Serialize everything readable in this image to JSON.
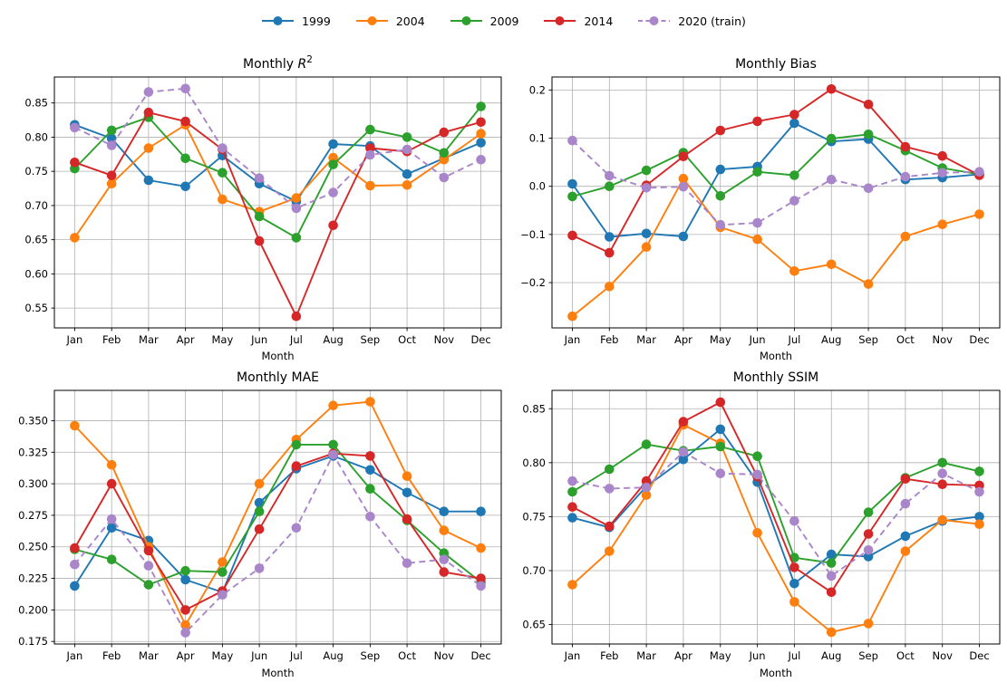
{
  "legend": {
    "items": [
      {
        "label": "1999",
        "color": "#1f77b4",
        "dashed": false
      },
      {
        "label": "2004",
        "color": "#ff7f0e",
        "dashed": false
      },
      {
        "label": "2009",
        "color": "#2ca02c",
        "dashed": false
      },
      {
        "label": "2014",
        "color": "#d62728",
        "dashed": false
      },
      {
        "label": "2020 (train)",
        "color": "#a985ca",
        "dashed": true
      }
    ]
  },
  "chart_data": [
    {
      "type": "line",
      "title": "Monthly R²",
      "xlabel": "Month",
      "categories": [
        "Jan",
        "Feb",
        "Mar",
        "Apr",
        "May",
        "Jun",
        "Jul",
        "Aug",
        "Sep",
        "Oct",
        "Nov",
        "Dec"
      ],
      "ylim": [
        0.521,
        0.888
      ],
      "yticks": [
        0.55,
        0.6,
        0.65,
        0.7,
        0.75,
        0.8,
        0.85
      ],
      "ytick_decimals": 2,
      "grid": true,
      "legend_position": "figure-top",
      "series": [
        {
          "name": "1999",
          "color": "#1f77b4",
          "dashed": false,
          "values": [
            0.818,
            0.798,
            0.737,
            0.728,
            0.773,
            0.732,
            0.706,
            0.79,
            0.787,
            0.746,
            0.769,
            0.792
          ]
        },
        {
          "name": "2004",
          "color": "#ff7f0e",
          "dashed": false,
          "values": [
            0.653,
            0.732,
            0.784,
            0.818,
            0.709,
            0.691,
            0.711,
            0.77,
            0.729,
            0.73,
            0.767,
            0.805
          ]
        },
        {
          "name": "2009",
          "color": "#2ca02c",
          "dashed": false,
          "values": [
            0.754,
            0.81,
            0.829,
            0.769,
            0.748,
            0.684,
            0.653,
            0.76,
            0.811,
            0.8,
            0.777,
            0.845
          ]
        },
        {
          "name": "2014",
          "color": "#d62728",
          "dashed": false,
          "values": [
            0.763,
            0.744,
            0.836,
            0.823,
            0.782,
            0.648,
            0.538,
            0.671,
            0.784,
            0.779,
            0.807,
            0.822
          ]
        },
        {
          "name": "2020 (train)",
          "color": "#a985ca",
          "dashed": true,
          "values": [
            0.814,
            0.788,
            0.866,
            0.871,
            0.784,
            0.74,
            0.696,
            0.719,
            0.774,
            0.782,
            0.741,
            0.767
          ]
        }
      ]
    },
    {
      "type": "line",
      "title": "Monthly Bias",
      "xlabel": "Month",
      "categories": [
        "Jan",
        "Feb",
        "Mar",
        "Apr",
        "May",
        "Jun",
        "Jul",
        "Aug",
        "Sep",
        "Oct",
        "Nov",
        "Dec"
      ],
      "ylim": [
        -0.294,
        0.227
      ],
      "yticks": [
        -0.2,
        -0.1,
        0.0,
        0.1,
        0.2
      ],
      "ytick_decimals": 1,
      "grid": true,
      "series": [
        {
          "name": "1999",
          "color": "#1f77b4",
          "dashed": false,
          "values": [
            0.005,
            -0.105,
            -0.098,
            -0.104,
            0.035,
            0.041,
            0.131,
            0.093,
            0.098,
            0.014,
            0.018,
            0.025
          ]
        },
        {
          "name": "2004",
          "color": "#ff7f0e",
          "dashed": false,
          "values": [
            -0.27,
            -0.208,
            -0.126,
            0.016,
            -0.085,
            -0.11,
            -0.176,
            -0.162,
            -0.203,
            -0.104,
            -0.079,
            -0.058
          ]
        },
        {
          "name": "2009",
          "color": "#2ca02c",
          "dashed": false,
          "values": [
            -0.021,
            0.0,
            0.033,
            0.07,
            -0.02,
            0.03,
            0.023,
            0.099,
            0.108,
            0.074,
            0.038,
            0.025
          ]
        },
        {
          "name": "2014",
          "color": "#d62728",
          "dashed": false,
          "values": [
            -0.102,
            -0.138,
            0.002,
            0.062,
            0.116,
            0.135,
            0.149,
            0.202,
            0.17,
            0.082,
            0.063,
            0.023
          ]
        },
        {
          "name": "2020 (train)",
          "color": "#a985ca",
          "dashed": true,
          "values": [
            0.095,
            0.022,
            -0.003,
            -0.001,
            -0.08,
            -0.076,
            -0.03,
            0.014,
            -0.004,
            0.02,
            0.028,
            0.03
          ]
        }
      ]
    },
    {
      "type": "line",
      "title": "Monthly MAE",
      "xlabel": "Month",
      "categories": [
        "Jan",
        "Feb",
        "Mar",
        "Apr",
        "May",
        "Jun",
        "Jul",
        "Aug",
        "Sep",
        "Oct",
        "Nov",
        "Dec"
      ],
      "ylim": [
        0.173,
        0.374
      ],
      "yticks": [
        0.175,
        0.2,
        0.225,
        0.25,
        0.275,
        0.3,
        0.325,
        0.35
      ],
      "ytick_decimals": 3,
      "grid": true,
      "series": [
        {
          "name": "1999",
          "color": "#1f77b4",
          "dashed": false,
          "values": [
            0.219,
            0.265,
            0.255,
            0.224,
            0.214,
            0.285,
            0.312,
            0.322,
            0.311,
            0.293,
            0.278,
            0.278
          ]
        },
        {
          "name": "2004",
          "color": "#ff7f0e",
          "dashed": false,
          "values": [
            0.346,
            0.315,
            0.25,
            0.188,
            0.238,
            0.3,
            0.335,
            0.362,
            0.365,
            0.306,
            0.263,
            0.249
          ]
        },
        {
          "name": "2009",
          "color": "#2ca02c",
          "dashed": false,
          "values": [
            0.248,
            0.24,
            0.22,
            0.231,
            0.23,
            0.278,
            0.331,
            0.331,
            0.296,
            0.271,
            0.245,
            0.222
          ]
        },
        {
          "name": "2014",
          "color": "#d62728",
          "dashed": false,
          "values": [
            0.249,
            0.3,
            0.247,
            0.2,
            0.215,
            0.264,
            0.314,
            0.324,
            0.322,
            0.272,
            0.23,
            0.225
          ]
        },
        {
          "name": "2020 (train)",
          "color": "#a985ca",
          "dashed": true,
          "values": [
            0.236,
            0.272,
            0.235,
            0.182,
            0.212,
            0.233,
            0.265,
            0.323,
            0.274,
            0.237,
            0.24,
            0.219
          ]
        }
      ]
    },
    {
      "type": "line",
      "title": "Monthly SSIM",
      "xlabel": "Month",
      "categories": [
        "Jan",
        "Feb",
        "Mar",
        "Apr",
        "May",
        "Jun",
        "Jul",
        "Aug",
        "Sep",
        "Oct",
        "Nov",
        "Dec"
      ],
      "ylim": [
        0.632,
        0.867
      ],
      "yticks": [
        0.65,
        0.7,
        0.75,
        0.8,
        0.85
      ],
      "ytick_decimals": 2,
      "grid": true,
      "series": [
        {
          "name": "1999",
          "color": "#1f77b4",
          "dashed": false,
          "values": [
            0.749,
            0.74,
            0.778,
            0.803,
            0.831,
            0.782,
            0.688,
            0.715,
            0.713,
            0.732,
            0.746,
            0.75
          ]
        },
        {
          "name": "2004",
          "color": "#ff7f0e",
          "dashed": false,
          "values": [
            0.687,
            0.718,
            0.77,
            0.835,
            0.818,
            0.735,
            0.671,
            0.643,
            0.651,
            0.718,
            0.747,
            0.743
          ]
        },
        {
          "name": "2009",
          "color": "#2ca02c",
          "dashed": false,
          "values": [
            0.773,
            0.794,
            0.817,
            0.811,
            0.815,
            0.806,
            0.712,
            0.707,
            0.754,
            0.786,
            0.8,
            0.792
          ]
        },
        {
          "name": "2014",
          "color": "#d62728",
          "dashed": false,
          "values": [
            0.759,
            0.741,
            0.783,
            0.838,
            0.856,
            0.787,
            0.703,
            0.68,
            0.734,
            0.785,
            0.78,
            0.779
          ]
        },
        {
          "name": "2020 (train)",
          "color": "#a985ca",
          "dashed": true,
          "values": [
            0.783,
            0.776,
            0.777,
            0.81,
            0.79,
            0.789,
            0.746,
            0.695,
            0.719,
            0.762,
            0.79,
            0.773
          ]
        }
      ]
    }
  ]
}
